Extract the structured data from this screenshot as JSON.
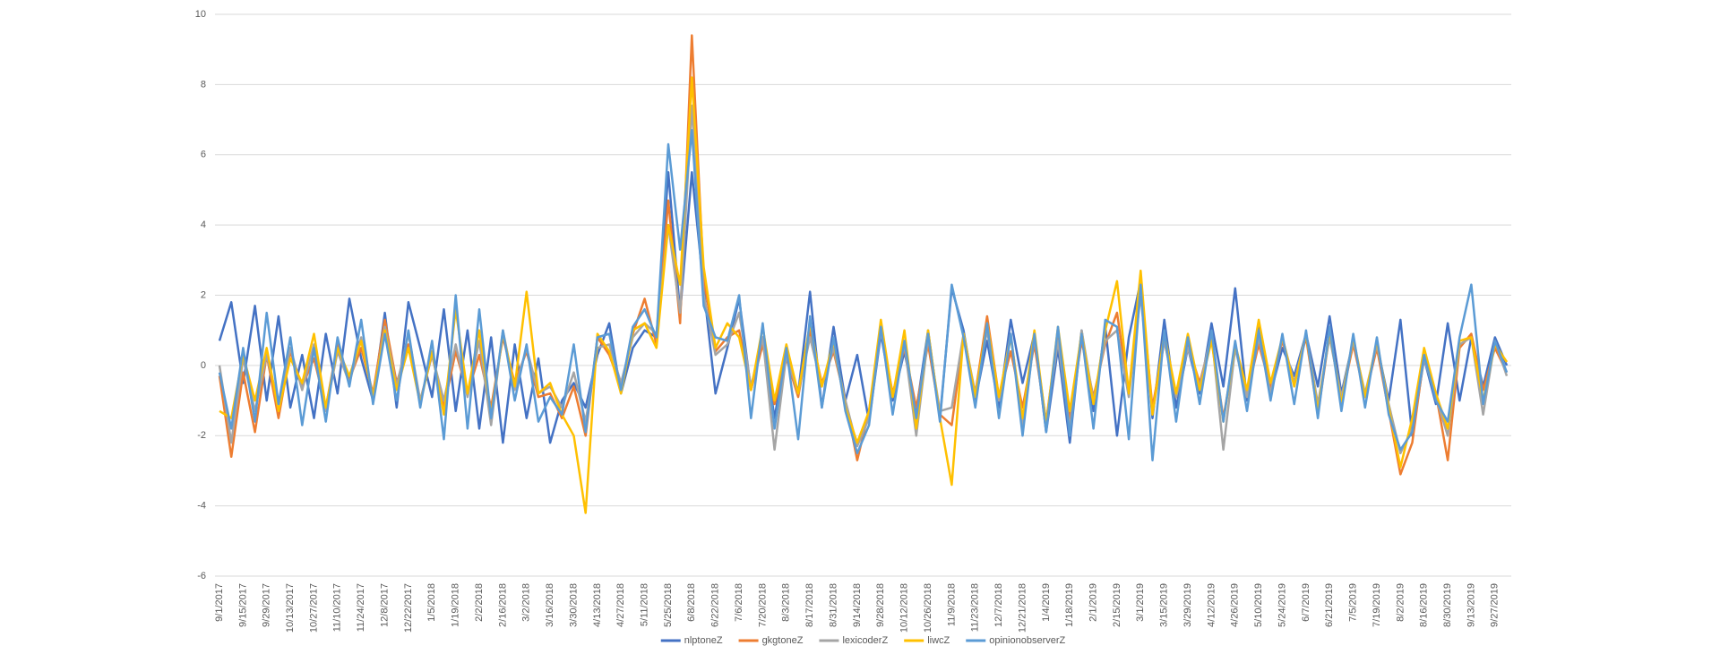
{
  "chart_data": {
    "type": "line",
    "categories": [
      "9/1/2017",
      null,
      "9/15/2017",
      null,
      "9/29/2017",
      null,
      "10/13/2017",
      null,
      "10/27/2017",
      null,
      "11/10/2017",
      null,
      "11/24/2017",
      null,
      "12/8/2017",
      null,
      "12/22/2017",
      null,
      "1/5/2018",
      null,
      "1/19/2018",
      null,
      "2/2/2018",
      null,
      "2/16/2018",
      null,
      "3/2/2018",
      null,
      "3/16/2018",
      null,
      "3/30/2018",
      null,
      "4/13/2018",
      null,
      "4/27/2018",
      null,
      "5/11/2018",
      null,
      "5/25/2018",
      null,
      "6/8/2018",
      null,
      "6/22/2018",
      null,
      "7/6/2018",
      null,
      "7/20/2018",
      null,
      "8/3/2018",
      null,
      "8/17/2018",
      null,
      "8/31/2018",
      null,
      "9/14/2018",
      null,
      "9/28/2018",
      null,
      "10/12/2018",
      null,
      "10/26/2018",
      null,
      "11/9/2018",
      null,
      "11/23/2018",
      null,
      "12/7/2018",
      null,
      "12/21/2018",
      null,
      "1/4/2019",
      null,
      "1/18/2019",
      null,
      "2/1/2019",
      null,
      "2/15/2019",
      null,
      "3/1/2019",
      null,
      "3/15/2019",
      null,
      "3/29/2019",
      null,
      "4/12/2019",
      null,
      "4/26/2019",
      null,
      "5/10/2019",
      null,
      "5/24/2019",
      null,
      "6/7/2019",
      null,
      "6/21/2019",
      null,
      "7/5/2019",
      null,
      "7/19/2019",
      null,
      "8/2/2019",
      null,
      "8/16/2019",
      null,
      "8/30/2019",
      null,
      "9/13/2019",
      null,
      "9/27/2019",
      null
    ],
    "series": [
      {
        "name": "nlptoneZ",
        "color": "#4472c4",
        "values": [
          0.7,
          1.8,
          -0.5,
          1.7,
          -1.0,
          1.4,
          -1.2,
          0.3,
          -1.5,
          0.9,
          -0.8,
          1.9,
          0.2,
          -1.0,
          1.5,
          -1.2,
          1.8,
          0.5,
          -0.9,
          1.6,
          -1.3,
          1.0,
          -1.8,
          0.8,
          -2.2,
          0.6,
          -1.5,
          0.2,
          -2.2,
          -1.0,
          -0.5,
          -1.2,
          0.3,
          1.2,
          -0.8,
          0.5,
          1.0,
          0.8,
          5.5,
          1.5,
          5.5,
          2.2,
          -0.8,
          0.5,
          1.9,
          -0.7,
          0.8,
          -1.5,
          0.5,
          -0.8,
          2.1,
          -1.2,
          1.1,
          -1.0,
          0.3,
          -1.6,
          0.9,
          -1.0,
          0.4,
          -1.3,
          1.0,
          -1.5,
          2.2,
          1.0,
          -1.0,
          0.7,
          -1.2,
          1.3,
          -0.5,
          0.9,
          -1.9,
          0.5,
          -2.2,
          1.0,
          -1.3,
          1.1,
          -2.0,
          0.8,
          2.4,
          -1.5,
          1.3,
          -1.2,
          0.5,
          -0.8,
          1.2,
          -0.6,
          2.2,
          -1.0,
          1.2,
          -0.8,
          0.5,
          -0.3,
          0.9,
          -0.6,
          1.4,
          -0.8,
          0.7,
          -0.9,
          0.6,
          -1.0,
          1.3,
          -2.0,
          0.2,
          -1.1,
          1.2,
          -1.0,
          0.8,
          -0.6,
          0.8,
          0.0
        ]
      },
      {
        "name": "gkgtoneZ",
        "color": "#ed7d31",
        "values": [
          -0.3,
          -2.6,
          -0.2,
          -1.9,
          0.3,
          -1.5,
          0.4,
          -0.6,
          0.2,
          -1.2,
          0.6,
          -0.4,
          0.5,
          -0.8,
          1.3,
          -0.5,
          0.6,
          -1.0,
          0.3,
          -1.2,
          0.4,
          -0.8,
          0.3,
          -1.2,
          0.8,
          -0.5,
          0.4,
          -0.9,
          -0.8,
          -1.5,
          -0.6,
          -2.0,
          0.8,
          0.3,
          -0.6,
          0.9,
          1.9,
          0.6,
          4.7,
          1.2,
          9.4,
          2.5,
          0.4,
          0.8,
          1.0,
          -0.7,
          0.6,
          -1.1,
          0.2,
          -0.9,
          1.0,
          -0.5,
          0.4,
          -1.0,
          -2.7,
          -1.3,
          1.0,
          -0.8,
          0.5,
          -1.2,
          0.6,
          -1.4,
          -1.7,
          0.8,
          -0.8,
          1.4,
          -0.9,
          0.4,
          -1.2,
          0.6,
          -1.6,
          0.9,
          -1.5,
          0.7,
          -0.9,
          0.6,
          1.5,
          -0.8,
          2.3,
          -1.2,
          0.7,
          -0.9,
          0.6,
          -0.5,
          0.8,
          -1.5,
          0.5,
          -0.8,
          0.6,
          -0.6,
          0.7,
          -0.5,
          0.8,
          -1.4,
          0.9,
          -1.0,
          0.6,
          -0.9,
          0.5,
          -1.3,
          -3.1,
          -2.2,
          0.3,
          -0.8,
          -2.7,
          0.5,
          0.9,
          -0.7,
          0.5,
          -0.2
        ]
      },
      {
        "name": "lexicoderZ",
        "color": "#a5a5a5",
        "values": [
          0.0,
          -2.2,
          0.2,
          -1.3,
          0.3,
          -1.1,
          0.5,
          -0.7,
          0.6,
          -1.3,
          0.4,
          -0.5,
          0.8,
          -0.9,
          1.1,
          -0.6,
          0.9,
          -1.0,
          0.3,
          -1.0,
          0.6,
          -0.9,
          0.7,
          -1.7,
          1.0,
          -0.7,
          0.5,
          -0.8,
          -0.6,
          -1.2,
          -0.2,
          -1.6,
          0.5,
          0.6,
          -0.5,
          0.8,
          1.2,
          0.9,
          4.0,
          1.5,
          7.4,
          2.0,
          0.3,
          0.6,
          1.5,
          -0.6,
          0.8,
          -2.4,
          0.3,
          -0.8,
          0.8,
          -0.6,
          0.5,
          -1.0,
          -2.3,
          -1.5,
          1.0,
          -0.9,
          0.6,
          -2.0,
          0.8,
          -1.3,
          -1.2,
          0.9,
          -0.8,
          1.0,
          -1.0,
          0.9,
          -1.8,
          0.8,
          -1.6,
          0.7,
          -1.8,
          1.0,
          -1.0,
          0.7,
          1.0,
          -0.9,
          2.0,
          -1.4,
          0.7,
          -0.9,
          0.5,
          -0.6,
          0.9,
          -2.4,
          0.5,
          -0.9,
          0.8,
          -0.8,
          0.8,
          -0.5,
          0.9,
          -1.1,
          0.8,
          -0.9,
          0.7,
          -0.8,
          0.6,
          -1.1,
          -2.5,
          -1.8,
          0.2,
          -0.9,
          -2.0,
          0.6,
          0.8,
          -1.4,
          0.7,
          -0.3
        ]
      },
      {
        "name": "liwcZ",
        "color": "#ffc000",
        "values": [
          -1.3,
          -1.5,
          0.3,
          -1.0,
          0.5,
          -1.3,
          0.2,
          -0.5,
          0.9,
          -1.2,
          0.5,
          -0.3,
          0.7,
          -0.9,
          1.0,
          -0.7,
          0.5,
          -1.1,
          0.4,
          -1.4,
          1.6,
          -0.8,
          1.0,
          -1.4,
          0.9,
          -0.6,
          2.1,
          -0.8,
          -0.5,
          -1.4,
          -2.0,
          -4.2,
          0.9,
          0.4,
          -0.8,
          1.0,
          1.2,
          0.5,
          4.0,
          2.3,
          8.2,
          2.8,
          0.5,
          1.2,
          0.8,
          -0.7,
          1.1,
          -1.0,
          0.6,
          -0.8,
          1.2,
          -0.6,
          0.7,
          -1.2,
          -2.2,
          -1.3,
          1.3,
          -0.9,
          1.0,
          -1.8,
          1.0,
          -1.5,
          -3.4,
          0.9,
          -0.9,
          1.2,
          -0.9,
          0.8,
          -1.5,
          1.0,
          -1.7,
          1.1,
          -1.3,
          0.9,
          -1.1,
          1.0,
          2.4,
          -0.8,
          2.7,
          -1.4,
          0.9,
          -0.8,
          0.9,
          -0.7,
          0.7,
          -1.6,
          0.6,
          -0.7,
          1.3,
          -0.5,
          0.8,
          -0.6,
          0.9,
          -1.3,
          1.0,
          -1.1,
          0.8,
          -0.9,
          0.7,
          -1.2,
          -2.9,
          -1.5,
          0.5,
          -0.8,
          -1.8,
          0.7,
          0.8,
          -1.0,
          0.6,
          0.1
        ]
      },
      {
        "name": "opinionobserverZ",
        "color": "#5b9bd5",
        "values": [
          -0.2,
          -1.8,
          0.5,
          -1.6,
          1.5,
          -1.1,
          0.8,
          -1.7,
          0.5,
          -1.6,
          0.8,
          -0.6,
          1.3,
          -1.1,
          0.9,
          -1.0,
          1.0,
          -1.2,
          0.7,
          -2.1,
          2.0,
          -1.8,
          1.6,
          -1.5,
          1.0,
          -1.0,
          0.6,
          -1.6,
          -0.9,
          -1.4,
          0.6,
          -1.9,
          0.8,
          0.9,
          -0.7,
          1.1,
          1.6,
          0.8,
          6.3,
          3.3,
          6.7,
          1.7,
          0.8,
          0.7,
          2.0,
          -1.5,
          1.2,
          -1.8,
          0.5,
          -2.1,
          1.4,
          -1.2,
          0.8,
          -1.3,
          -2.5,
          -1.7,
          1.1,
          -1.4,
          0.7,
          -1.5,
          0.9,
          -1.6,
          2.3,
          0.8,
          -1.2,
          1.2,
          -1.5,
          0.9,
          -2.0,
          0.9,
          -1.9,
          1.1,
          -2.0,
          0.9,
          -1.8,
          1.3,
          1.1,
          -2.1,
          2.3,
          -2.7,
          1.0,
          -1.6,
          0.8,
          -1.1,
          1.0,
          -1.6,
          0.7,
          -1.3,
          1.0,
          -1.0,
          0.9,
          -1.1,
          1.0,
          -1.5,
          1.1,
          -1.3,
          0.9,
          -1.2,
          0.8,
          -1.4,
          -2.4,
          -1.9,
          0.3,
          -1.0,
          -1.6,
          0.8,
          2.3,
          -1.1,
          0.7,
          -0.2
        ]
      }
    ],
    "ylim": [
      -6,
      10
    ],
    "yticks": [
      -6,
      -4,
      -2,
      0,
      2,
      4,
      6,
      8,
      10
    ],
    "grid": true,
    "legend": "bottom"
  }
}
